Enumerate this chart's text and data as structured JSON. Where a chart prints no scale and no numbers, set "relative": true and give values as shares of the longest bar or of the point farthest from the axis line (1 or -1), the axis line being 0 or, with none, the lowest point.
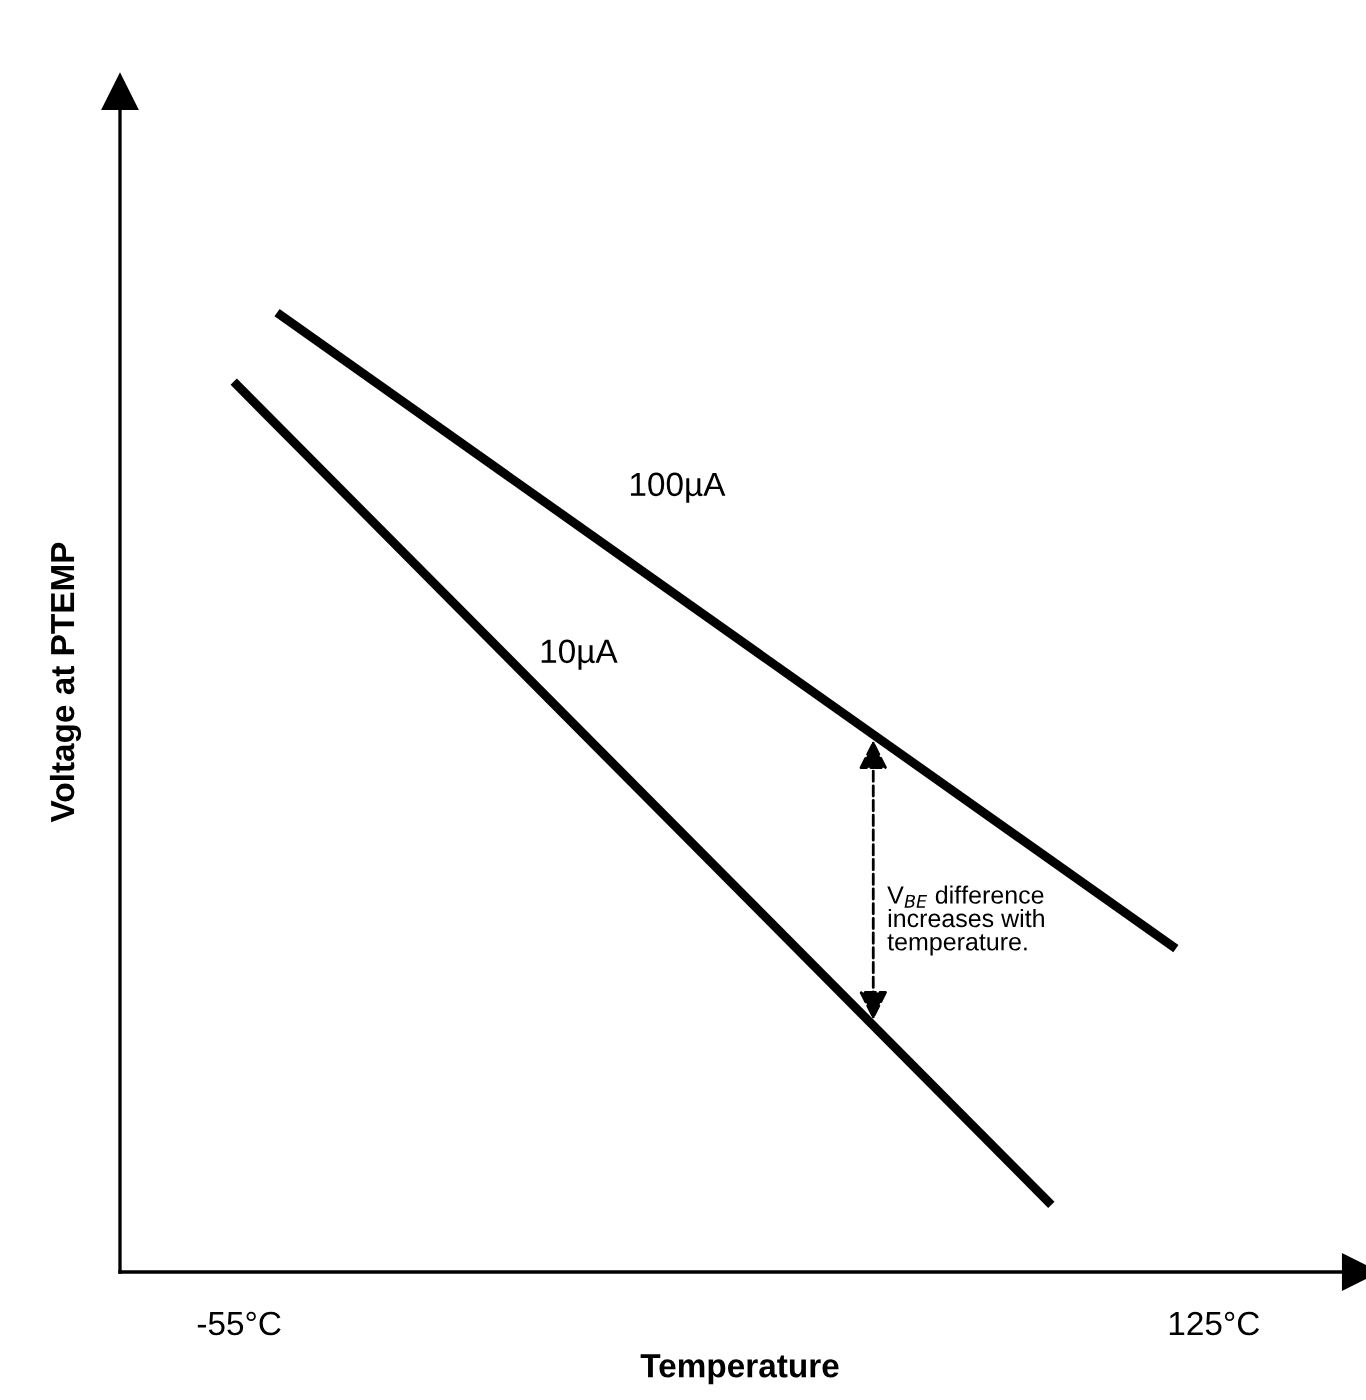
{
  "chart_data": {
    "type": "line",
    "xlabel": "Temperature",
    "ylabel": "Voltage at PTEMP",
    "relative": true,
    "xlim": [
      -77,
      152
    ],
    "xticks": [
      {
        "value": -55,
        "label": "-55°C"
      },
      {
        "value": 125,
        "label": "125°C"
      }
    ],
    "series": [
      {
        "name": "100µA",
        "color": "#000000",
        "x": [
          -48,
          118
        ],
        "values": [
          1,
          0.337
        ]
      },
      {
        "name": "10µA",
        "color": "#000000",
        "x": [
          -56,
          95
        ],
        "values": [
          0.928,
          0.07
        ]
      }
    ],
    "annotations": [
      "V$_{BE}$ difference\nincreases with\ntemperature."
    ],
    "grid": false,
    "legend": false,
    "marker": "none",
    "line_style": "solid"
  }
}
